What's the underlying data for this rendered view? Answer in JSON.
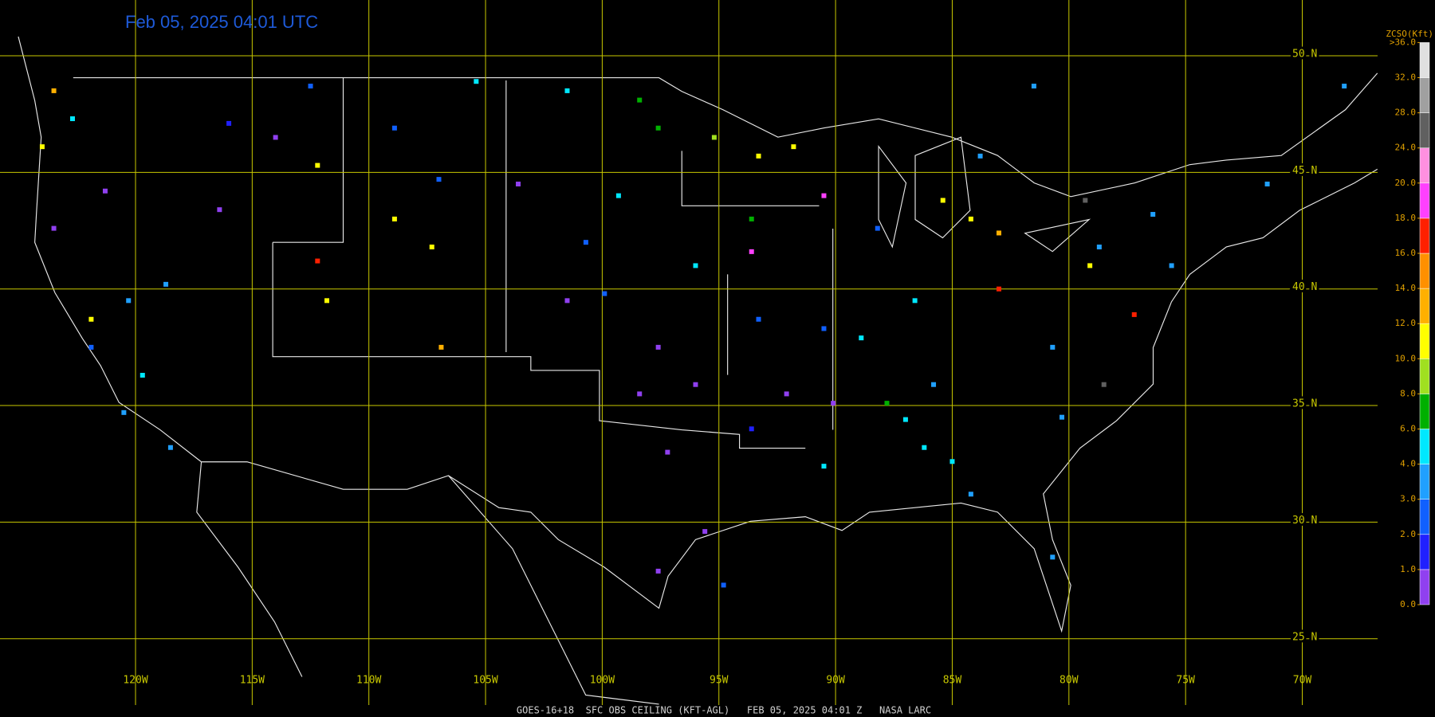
{
  "title": "Feb 05, 2025 04:01 UTC",
  "footer": "GOES-16+18  SFC OBS CEILING (KFT-AGL)   FEB 05, 2025 04:01 Z   NASA LARC",
  "map": {
    "lon_lines": [
      {
        "value": 120,
        "label": "120W"
      },
      {
        "value": 115,
        "label": "115W"
      },
      {
        "value": 110,
        "label": "110W"
      },
      {
        "value": 105,
        "label": "105W"
      },
      {
        "value": 100,
        "label": "100W"
      },
      {
        "value": 95,
        "label": "95W"
      },
      {
        "value": 90,
        "label": "90W"
      },
      {
        "value": 85,
        "label": "85W"
      },
      {
        "value": 80,
        "label": "80W"
      },
      {
        "value": 75,
        "label": "75W"
      },
      {
        "value": 70,
        "label": "70W"
      }
    ],
    "lat_lines": [
      {
        "value": 50,
        "label": "50 N"
      },
      {
        "value": 45,
        "label": "45 N"
      },
      {
        "value": 40,
        "label": "40 N"
      },
      {
        "value": 35,
        "label": "35 N"
      },
      {
        "value": 30,
        "label": "30 N"
      },
      {
        "value": 25,
        "label": "25 N"
      }
    ],
    "grid_color": "#c8c800"
  },
  "colorbar": {
    "title": "ZCSO(Kft)",
    "ticks": [
      {
        "value": 0,
        "label": "0.0"
      },
      {
        "value": 1,
        "label": "1.0"
      },
      {
        "value": 2,
        "label": "2.0"
      },
      {
        "value": 3,
        "label": "3.0"
      },
      {
        "value": 4,
        "label": "4.0"
      },
      {
        "value": 6,
        "label": "6.0"
      },
      {
        "value": 8,
        "label": "8.0"
      },
      {
        "value": 10,
        "label": "10.0"
      },
      {
        "value": 12,
        "label": "12.0"
      },
      {
        "value": 14,
        "label": "14.0"
      },
      {
        "value": 16,
        "label": "16.0"
      },
      {
        "value": 18,
        "label": "18.0"
      },
      {
        "value": 20,
        "label": "20.0"
      },
      {
        "value": 24,
        "label": "24.0"
      },
      {
        "value": 28,
        "label": "28.0"
      },
      {
        "value": 32,
        "label": "32.0"
      },
      {
        "value": 36,
        "label": ">36.0"
      }
    ],
    "colors": [
      "#9040f0",
      "#2020ff",
      "#1060ff",
      "#20a0ff",
      "#00e8ff",
      "#00b000",
      "#a0e020",
      "#ffff00",
      "#ffb000",
      "#ff9000",
      "#ff2000",
      "#ff40ff",
      "#ff90e0",
      "#606060",
      "#a0a0a0",
      "#e0e0e0"
    ]
  },
  "stations": [
    {
      "lon": 97.2,
      "lat": 33.0,
      "ceiling": 0.5
    },
    {
      "lon": 97.6,
      "lat": 37.5,
      "ceiling": 0.5
    },
    {
      "lon": 98.4,
      "lat": 35.5,
      "ceiling": 0.7
    },
    {
      "lon": 96.0,
      "lat": 35.9,
      "ceiling": 0.5
    },
    {
      "lon": 101.5,
      "lat": 39.5,
      "ceiling": 0.5
    },
    {
      "lon": 97.6,
      "lat": 27.9,
      "ceiling": 0.6
    },
    {
      "lon": 95.6,
      "lat": 29.6,
      "ceiling": 0.8
    },
    {
      "lon": 90.1,
      "lat": 35.1,
      "ceiling": 0.8
    },
    {
      "lon": 92.1,
      "lat": 35.5,
      "ceiling": 0.7
    },
    {
      "lon": 93.6,
      "lat": 34.0,
      "ceiling": 1.5
    },
    {
      "lon": 93.3,
      "lat": 38.7,
      "ceiling": 2.2
    },
    {
      "lon": 90.5,
      "lat": 38.3,
      "ceiling": 2.5
    },
    {
      "lon": 88.2,
      "lat": 42.6,
      "ceiling": 2.0
    },
    {
      "lon": 86.6,
      "lat": 39.5,
      "ceiling": 4.5
    },
    {
      "lon": 87.0,
      "lat": 34.4,
      "ceiling": 4.5
    },
    {
      "lon": 86.2,
      "lat": 33.2,
      "ceiling": 4.5
    },
    {
      "lon": 90.5,
      "lat": 32.4,
      "ceiling": 4.5
    },
    {
      "lon": 88.9,
      "lat": 37.9,
      "ceiling": 4.5
    },
    {
      "lon": 96.0,
      "lat": 41.0,
      "ceiling": 4.5
    },
    {
      "lon": 99.3,
      "lat": 44.0,
      "ceiling": 4.5
    },
    {
      "lon": 101.5,
      "lat": 48.5,
      "ceiling": 4.5
    },
    {
      "lon": 105.4,
      "lat": 48.9,
      "ceiling": 4.5
    },
    {
      "lon": 98.4,
      "lat": 48.1,
      "ceiling": 7
    },
    {
      "lon": 97.6,
      "lat": 46.9,
      "ceiling": 7
    },
    {
      "lon": 95.2,
      "lat": 46.5,
      "ceiling": 9
    },
    {
      "lon": 93.3,
      "lat": 45.7,
      "ceiling": 11
    },
    {
      "lon": 91.8,
      "lat": 46.1,
      "ceiling": 11
    },
    {
      "lon": 85.4,
      "lat": 43.8,
      "ceiling": 11
    },
    {
      "lon": 84.2,
      "lat": 43.0,
      "ceiling": 11
    },
    {
      "lon": 83.0,
      "lat": 42.4,
      "ceiling": 12
    },
    {
      "lon": 79.1,
      "lat": 41.0,
      "ceiling": 11
    },
    {
      "lon": 78.7,
      "lat": 41.8,
      "ceiling": 3.5
    },
    {
      "lon": 76.4,
      "lat": 43.2,
      "ceiling": 3.5
    },
    {
      "lon": 75.6,
      "lat": 41.0,
      "ceiling": 3.5
    },
    {
      "lon": 77.2,
      "lat": 38.9,
      "ceiling": 17
    },
    {
      "lon": 83.0,
      "lat": 40.0,
      "ceiling": 17
    },
    {
      "lon": 80.7,
      "lat": 37.5,
      "ceiling": 3
    },
    {
      "lon": 80.3,
      "lat": 34.5,
      "ceiling": 3
    },
    {
      "lon": 80.7,
      "lat": 28.5,
      "ceiling": 3
    },
    {
      "lon": 84.2,
      "lat": 31.2,
      "ceiling": 3
    },
    {
      "lon": 85.8,
      "lat": 35.9,
      "ceiling": 3
    },
    {
      "lon": 83.8,
      "lat": 45.7,
      "ceiling": 3
    },
    {
      "lon": 81.5,
      "lat": 48.7,
      "ceiling": 3
    },
    {
      "lon": 71.5,
      "lat": 44.5,
      "ceiling": 3.5
    },
    {
      "lon": 68.2,
      "lat": 48.7,
      "ceiling": 3.5
    },
    {
      "lon": 123.5,
      "lat": 48.5,
      "ceiling": 12
    },
    {
      "lon": 124.0,
      "lat": 46.1,
      "ceiling": 11
    },
    {
      "lon": 122.7,
      "lat": 47.3,
      "ceiling": 4.5
    },
    {
      "lon": 121.3,
      "lat": 44.2,
      "ceiling": 0.5
    },
    {
      "lon": 123.5,
      "lat": 42.6,
      "ceiling": 0.5
    },
    {
      "lon": 121.9,
      "lat": 37.5,
      "ceiling": 2
    },
    {
      "lon": 121.9,
      "lat": 38.7,
      "ceiling": 11
    },
    {
      "lon": 120.3,
      "lat": 39.5,
      "ceiling": 3.5
    },
    {
      "lon": 119.7,
      "lat": 36.3,
      "ceiling": 4.5
    },
    {
      "lon": 120.5,
      "lat": 34.7,
      "ceiling": 3.5
    },
    {
      "lon": 118.5,
      "lat": 33.2,
      "ceiling": 3.5
    },
    {
      "lon": 118.7,
      "lat": 40.2,
      "ceiling": 3.5
    },
    {
      "lon": 116.4,
      "lat": 43.4,
      "ceiling": 0.5
    },
    {
      "lon": 116.0,
      "lat": 47.1,
      "ceiling": 1.5
    },
    {
      "lon": 114.0,
      "lat": 46.5,
      "ceiling": 0.5
    },
    {
      "lon": 112.5,
      "lat": 48.7,
      "ceiling": 2
    },
    {
      "lon": 112.2,
      "lat": 45.3,
      "ceiling": 11
    },
    {
      "lon": 112.2,
      "lat": 41.2,
      "ceiling": 17
    },
    {
      "lon": 111.8,
      "lat": 39.5,
      "ceiling": 11
    },
    {
      "lon": 108.9,
      "lat": 43.0,
      "ceiling": 11
    },
    {
      "lon": 107.3,
      "lat": 41.8,
      "ceiling": 11
    },
    {
      "lon": 106.9,
      "lat": 37.5,
      "ceiling": 12
    },
    {
      "lon": 108.9,
      "lat": 46.9,
      "ceiling": 2
    },
    {
      "lon": 107.0,
      "lat": 44.7,
      "ceiling": 2
    },
    {
      "lon": 103.6,
      "lat": 44.5,
      "ceiling": 0.5
    },
    {
      "lon": 100.7,
      "lat": 42.0,
      "ceiling": 2
    },
    {
      "lon": 99.9,
      "lat": 39.8,
      "ceiling": 2
    },
    {
      "lon": 93.6,
      "lat": 43.0,
      "ceiling": 7
    },
    {
      "lon": 93.6,
      "lat": 41.6,
      "ceiling": 19
    },
    {
      "lon": 90.5,
      "lat": 44.0,
      "ceiling": 19
    },
    {
      "lon": 78.5,
      "lat": 35.9,
      "ceiling": 26
    },
    {
      "lon": 79.3,
      "lat": 43.8,
      "ceiling": 26
    },
    {
      "lon": 87.8,
      "lat": 35.1,
      "ceiling": 7
    },
    {
      "lon": 85.0,
      "lat": 32.6,
      "ceiling": 4.5
    },
    {
      "lon": 94.8,
      "lat": 27.3,
      "ceiling": 2
    }
  ]
}
